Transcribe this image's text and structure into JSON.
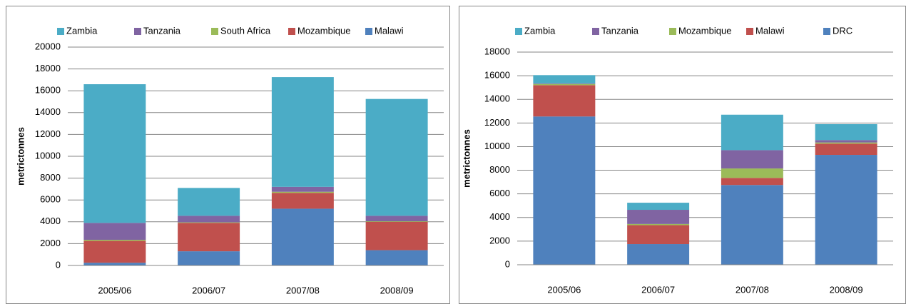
{
  "chart_data": [
    {
      "type": "bar",
      "stacked": true,
      "y_label": "metrictonnes",
      "categories": [
        "2005/06",
        "2006/07",
        "2007/08",
        "2008/09"
      ],
      "series": [
        {
          "name": "Malawi",
          "color": "#4f81bd",
          "values": [
            250,
            1300,
            5200,
            1400
          ]
        },
        {
          "name": "Mozambique",
          "color": "#c0504d",
          "values": [
            2000,
            2600,
            1450,
            2600
          ]
        },
        {
          "name": "South Africa",
          "color": "#9bbb59",
          "values": [
            100,
            50,
            100,
            50
          ]
        },
        {
          "name": "Tanzania",
          "color": "#8064a2",
          "values": [
            1550,
            600,
            450,
            500
          ]
        },
        {
          "name": "Zambia",
          "color": "#4bacc6",
          "values": [
            12700,
            2550,
            10050,
            10700
          ]
        }
      ],
      "ylim": [
        0,
        20000
      ],
      "yticks": [
        0,
        2000,
        4000,
        6000,
        8000,
        10000,
        12000,
        14000,
        16000,
        18000,
        20000
      ],
      "grid": true,
      "legend": "top"
    },
    {
      "type": "bar",
      "stacked": true,
      "y_label": "metrictonnes",
      "categories": [
        "2005/06",
        "2006/07",
        "2007/08",
        "2008/09"
      ],
      "series": [
        {
          "name": "DRC",
          "color": "#4f81bd",
          "values": [
            12550,
            1750,
            6750,
            9300
          ]
        },
        {
          "name": "Malawi",
          "color": "#c0504d",
          "values": [
            2650,
            1600,
            600,
            950
          ]
        },
        {
          "name": "Mozambique",
          "color": "#9bbb59",
          "values": [
            100,
            100,
            800,
            100
          ]
        },
        {
          "name": "Tanzania",
          "color": "#8064a2",
          "values": [
            50,
            1200,
            1550,
            200
          ]
        },
        {
          "name": "Zambia",
          "color": "#4bacc6",
          "values": [
            700,
            600,
            3000,
            1350
          ]
        }
      ],
      "ylim": [
        0,
        18000
      ],
      "yticks": [
        0,
        2000,
        4000,
        6000,
        8000,
        10000,
        12000,
        14000,
        16000,
        18000
      ],
      "grid": true,
      "legend": "top"
    }
  ]
}
